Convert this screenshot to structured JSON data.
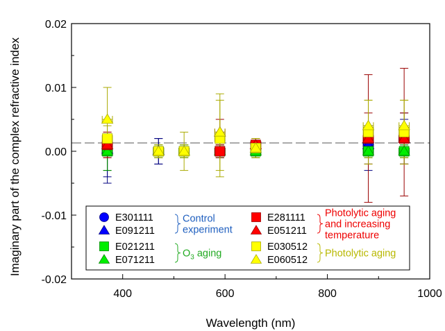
{
  "chart_data": {
    "type": "scatter",
    "xlabel": "Wavelength (nm)",
    "ylabel": "Imaginary part of the complex refractive index",
    "xlim": [
      300,
      1000
    ],
    "ylim": [
      -0.02,
      0.02
    ],
    "xticks": [
      400,
      600,
      800,
      1000
    ],
    "xtick_labels": [
      "400",
      "600",
      "800",
      "1000"
    ],
    "yticks": [
      -0.02,
      -0.01,
      0.0,
      0.01,
      0.02
    ],
    "ytick_labels": [
      "-0.02",
      "-0.01",
      "0.00",
      "0.01",
      "0.02"
    ],
    "grid": false,
    "reference_line": {
      "y": 0.0013,
      "style": "dashed",
      "color": "#555555"
    },
    "legend_placement": "bottom-center",
    "x_error": 10,
    "series": [
      {
        "name": "E301111",
        "marker": "circle",
        "color": "#0000ff",
        "edge": "#000080",
        "points": [
          {
            "x": 370,
            "y": 0.0003,
            "ylo": -0.004,
            "yhi": 0.0015
          },
          {
            "x": 470,
            "y": 0.0,
            "ylo": -0.002,
            "yhi": 0.002
          },
          {
            "x": 880,
            "y": 0.0012,
            "ylo": -0.003,
            "yhi": 0.004
          },
          {
            "x": 950,
            "y": 0.002,
            "ylo": -0.002,
            "yhi": 0.006
          }
        ]
      },
      {
        "name": "E091211",
        "marker": "triangle",
        "color": "#0000ff",
        "edge": "#000080",
        "points": [
          {
            "x": 370,
            "y": 0.0003,
            "ylo": -0.005,
            "yhi": 0.002
          },
          {
            "x": 470,
            "y": 0.0001,
            "ylo": -0.002,
            "yhi": 0.002
          },
          {
            "x": 880,
            "y": 0.001,
            "ylo": -0.002,
            "yhi": 0.004
          },
          {
            "x": 950,
            "y": 0.002,
            "ylo": -0.002,
            "yhi": 0.005
          }
        ]
      },
      {
        "name": "E021211",
        "marker": "square",
        "color": "#00ee00",
        "edge": "#008800",
        "points": [
          {
            "x": 370,
            "y": 0.0,
            "ylo": -0.003,
            "yhi": 0.002
          },
          {
            "x": 470,
            "y": 0.0,
            "ylo": -0.001,
            "yhi": 0.001
          },
          {
            "x": 520,
            "y": 0.0,
            "ylo": -0.001,
            "yhi": 0.001
          },
          {
            "x": 590,
            "y": 0.0,
            "ylo": -0.001,
            "yhi": 0.001
          },
          {
            "x": 660,
            "y": 0.0,
            "ylo": -0.001,
            "yhi": 0.001
          },
          {
            "x": 880,
            "y": 0.0,
            "ylo": -0.001,
            "yhi": 0.001
          },
          {
            "x": 950,
            "y": 0.0,
            "ylo": -0.001,
            "yhi": 0.001
          }
        ]
      },
      {
        "name": "E071211",
        "marker": "triangle",
        "color": "#00ee00",
        "edge": "#008800",
        "points": [
          {
            "x": 370,
            "y": 0.0,
            "ylo": -0.003,
            "yhi": 0.002
          },
          {
            "x": 470,
            "y": 0.0,
            "ylo": -0.001,
            "yhi": 0.001
          },
          {
            "x": 520,
            "y": 0.0,
            "ylo": -0.001,
            "yhi": 0.001
          },
          {
            "x": 590,
            "y": 0.0,
            "ylo": -0.001,
            "yhi": 0.001
          },
          {
            "x": 660,
            "y": 0.0,
            "ylo": -0.001,
            "yhi": 0.001
          },
          {
            "x": 880,
            "y": 0.0,
            "ylo": -0.001,
            "yhi": 0.001
          },
          {
            "x": 950,
            "y": 0.0,
            "ylo": -0.001,
            "yhi": 0.001
          }
        ]
      },
      {
        "name": "E281111",
        "marker": "square",
        "color": "#ff0000",
        "edge": "#990000",
        "points": [
          {
            "x": 370,
            "y": 0.001,
            "ylo": -0.001,
            "yhi": 0.003
          },
          {
            "x": 590,
            "y": 0.0,
            "ylo": -0.001,
            "yhi": 0.001
          },
          {
            "x": 660,
            "y": 0.001,
            "ylo": 0.0,
            "yhi": 0.002
          },
          {
            "x": 880,
            "y": 0.002,
            "ylo": -0.008,
            "yhi": 0.012
          },
          {
            "x": 950,
            "y": 0.002,
            "ylo": -0.007,
            "yhi": 0.013
          }
        ]
      },
      {
        "name": "E051211",
        "marker": "triangle",
        "color": "#ff0000",
        "edge": "#990000",
        "points": [
          {
            "x": 370,
            "y": 0.001,
            "ylo": -0.001,
            "yhi": 0.003
          },
          {
            "x": 590,
            "y": 0.003,
            "ylo": 0.001,
            "yhi": 0.005
          },
          {
            "x": 660,
            "y": 0.001,
            "ylo": 0.0,
            "yhi": 0.002
          },
          {
            "x": 880,
            "y": 0.002,
            "ylo": -0.002,
            "yhi": 0.006
          },
          {
            "x": 950,
            "y": 0.002,
            "ylo": -0.002,
            "yhi": 0.006
          }
        ]
      },
      {
        "name": "E030512",
        "marker": "square",
        "color": "#ffff00",
        "edge": "#aaaa00",
        "points": [
          {
            "x": 370,
            "y": 0.002,
            "ylo": 0.0,
            "yhi": 0.004
          },
          {
            "x": 470,
            "y": 0.0,
            "ylo": -0.001,
            "yhi": 0.001
          },
          {
            "x": 520,
            "y": 0.0,
            "ylo": -0.001,
            "yhi": 0.001
          },
          {
            "x": 590,
            "y": 0.002,
            "ylo": -0.004,
            "yhi": 0.008
          },
          {
            "x": 660,
            "y": 0.0005,
            "ylo": -0.001,
            "yhi": 0.002
          },
          {
            "x": 880,
            "y": 0.003,
            "ylo": -0.002,
            "yhi": 0.008
          },
          {
            "x": 950,
            "y": 0.003,
            "ylo": -0.002,
            "yhi": 0.008
          }
        ]
      },
      {
        "name": "E060512",
        "marker": "triangle",
        "color": "#ffff00",
        "edge": "#aaaa00",
        "points": [
          {
            "x": 370,
            "y": 0.005,
            "ylo": 0.0,
            "yhi": 0.01
          },
          {
            "x": 470,
            "y": 0.0,
            "ylo": -0.001,
            "yhi": 0.001
          },
          {
            "x": 520,
            "y": 0.0,
            "ylo": -0.003,
            "yhi": 0.003
          },
          {
            "x": 590,
            "y": 0.003,
            "ylo": -0.003,
            "yhi": 0.009
          },
          {
            "x": 660,
            "y": 0.0005,
            "ylo": -0.001,
            "yhi": 0.002
          },
          {
            "x": 880,
            "y": 0.004,
            "ylo": -0.001,
            "yhi": 0.008
          },
          {
            "x": 950,
            "y": 0.004,
            "ylo": -0.001,
            "yhi": 0.008
          }
        ]
      }
    ],
    "legend": {
      "groups": [
        {
          "label": "Control experiment",
          "label_lines": [
            "Control",
            "experiment"
          ],
          "color": "#1f5fbf",
          "items": [
            "E301111",
            "E091211"
          ]
        },
        {
          "label": "O3 aging",
          "label_main": "O",
          "label_sub": "3",
          "label_rest": " aging",
          "color": "#22aa22",
          "items": [
            "E021211",
            "E071211"
          ]
        },
        {
          "label": "Photolytic aging and increasing temperature",
          "label_lines": [
            "Photolytic aging",
            "and increasing",
            "temperature"
          ],
          "color": "#ee0000",
          "items": [
            "E281111",
            "E051211"
          ]
        },
        {
          "label": "Photolytic aging",
          "label_lines": [
            "Photolytic aging"
          ],
          "color": "#b8b800",
          "items": [
            "E030512",
            "E060512"
          ]
        }
      ]
    }
  }
}
